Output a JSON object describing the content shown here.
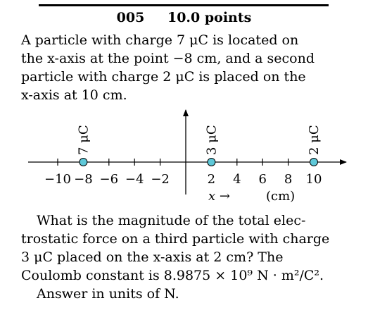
{
  "header": {
    "problem_number": "005",
    "points": "10.0 points"
  },
  "problem": {
    "lines": [
      "A particle with charge 7 μC is located on",
      "the x-axis at the point −8 cm, and a second",
      "particle with charge 2 μC is placed on the",
      "x-axis at 10 cm."
    ]
  },
  "figure": {
    "charges": [
      {
        "x": -8,
        "label": "7 μC"
      },
      {
        "x": 2,
        "label": "3 μC"
      },
      {
        "x": 10,
        "label": "2 μC"
      }
    ],
    "ticks": [
      -10,
      -8,
      -6,
      -4,
      -2,
      2,
      4,
      6,
      8,
      10
    ],
    "tick_labels": [
      "−10",
      "−8",
      "−6",
      "−4",
      "−2",
      "2",
      "4",
      "6",
      "8",
      "10"
    ],
    "axis_caption": "x →",
    "unit_caption": "(cm)",
    "colors": {
      "charge_fill": "#5ec8d8",
      "axis": "#000000"
    }
  },
  "question": {
    "lines": [
      "What is the magnitude of the total elec-",
      "trostatic force on a third particle with charge",
      "3 μC placed on the x-axis at 2 cm? The",
      "Coulomb constant is 8.9875 × 10⁹ N · m²/C².",
      "Answer in units of N."
    ]
  }
}
